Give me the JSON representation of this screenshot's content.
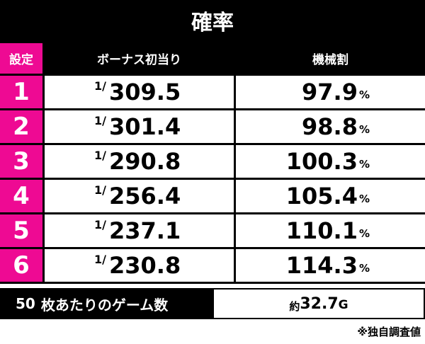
{
  "title": "確率",
  "header": [
    "設定",
    "ボーナス初当り",
    "機械割"
  ],
  "rows": [
    {
      "setting": "1",
      "bonus_prefix": "1/",
      "bonus": "309.5",
      "payout": "97.9",
      "payout_unit": "%"
    },
    {
      "setting": "2",
      "bonus_prefix": "1/",
      "bonus": "301.4",
      "payout": "98.8",
      "payout_unit": "%"
    },
    {
      "setting": "3",
      "bonus_prefix": "1/",
      "bonus": "290.8",
      "payout": "100.3",
      "payout_unit": "%"
    },
    {
      "setting": "4",
      "bonus_prefix": "1/",
      "bonus": "256.4",
      "payout": "105.4",
      "payout_unit": "%"
    },
    {
      "setting": "5",
      "bonus_prefix": "1/",
      "bonus": "237.1",
      "payout": "110.1",
      "payout_unit": "%"
    },
    {
      "setting": "6",
      "bonus_prefix": "1/",
      "bonus": "230.8",
      "payout": "114.3",
      "payout_unit": "%"
    }
  ],
  "footer": {
    "label_number": "50",
    "label_text": "枚あたりのゲーム数",
    "value_prefix": "約",
    "value": "32.7",
    "value_unit": "G"
  },
  "note": "※独自調査値"
}
